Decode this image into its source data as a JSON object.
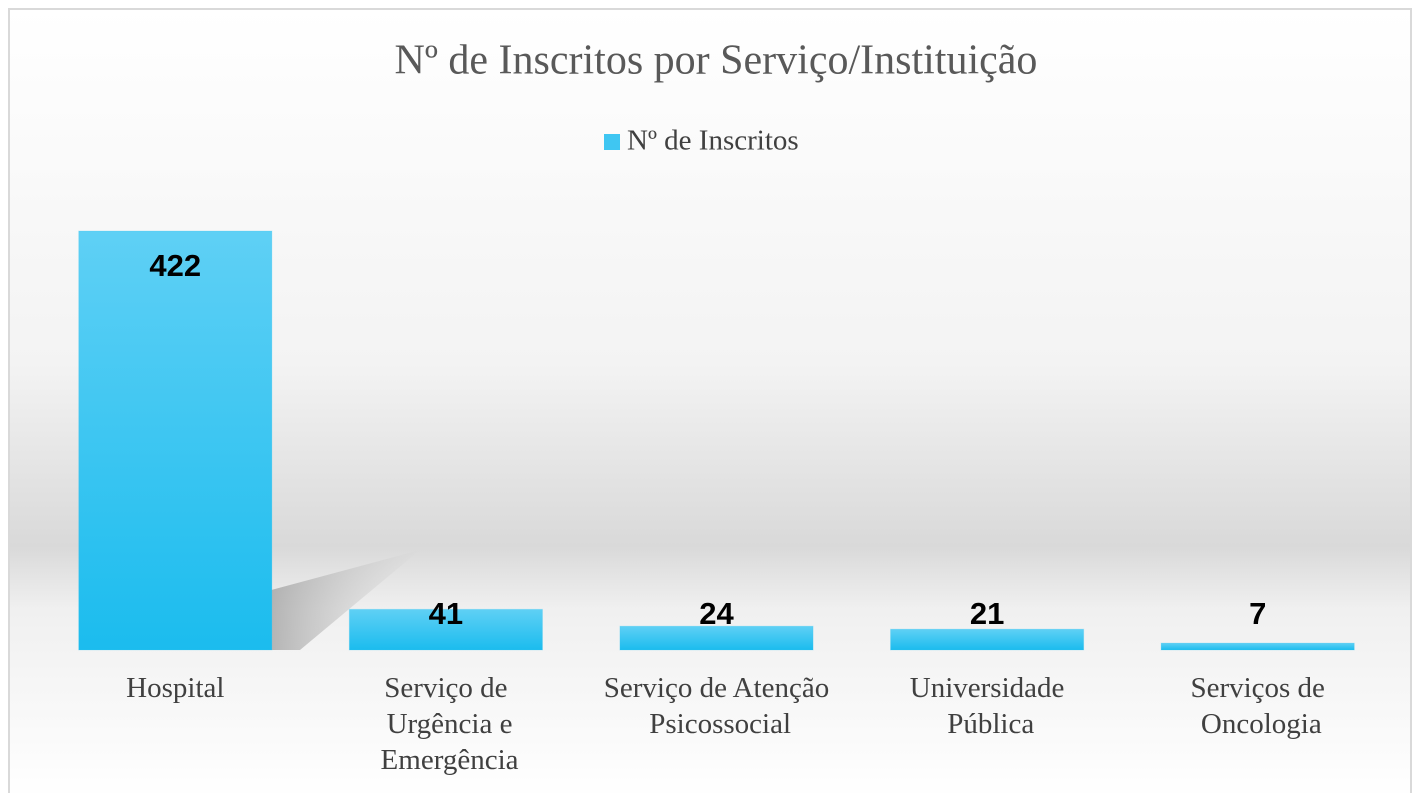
{
  "chart_data": {
    "type": "bar",
    "title": "Nº de Inscritos por Serviço/Instituição",
    "categories": [
      "Hospital",
      "Serviço de Urgência e Emergência",
      "Serviço de Atenção Psicossocial",
      "Universidade Pública",
      "Serviços de Oncologia"
    ],
    "series": [
      {
        "name": "Nº de Inscritos",
        "color": "#3fc6f2",
        "values": [
          422,
          41,
          24,
          21,
          7
        ]
      }
    ],
    "ylim": [
      0,
      422
    ],
    "legend": "top",
    "grid": false
  }
}
